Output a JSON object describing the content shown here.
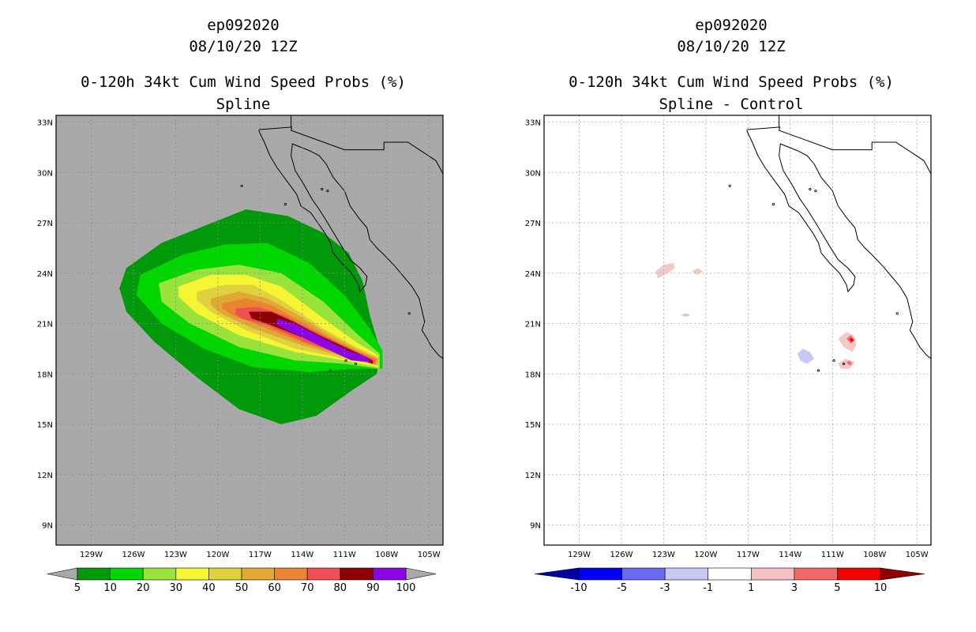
{
  "chart_data": [
    {
      "type": "filled-contour-map",
      "title_lines": [
        "ep092020",
        "08/10/20 12Z",
        "0-120h 34kt Cum Wind Speed Probs (%)",
        "Spline"
      ],
      "x_ticks": [
        "129W",
        "126W",
        "123W",
        "120W",
        "117W",
        "114W",
        "111W",
        "108W",
        "105W"
      ],
      "y_ticks": [
        "9N",
        "12N",
        "15N",
        "18N",
        "21N",
        "24N",
        "27N",
        "30N",
        "33N"
      ],
      "xlim_deg_east": [
        -131.5,
        -104.0
      ],
      "ylim_deg_north": [
        7.8,
        33.4
      ],
      "background_color": "#a9a9a9",
      "colorbar_labels": [
        "5",
        "10",
        "20",
        "30",
        "40",
        "50",
        "60",
        "70",
        "80",
        "90",
        "100"
      ],
      "colorbar_colors": [
        "#00990a",
        "#00d700",
        "#9ae33c",
        "#f5f533",
        "#dfd13f",
        "#e2a834",
        "#ea8430",
        "#f04f55",
        "#8c0000",
        "#8c05e6"
      ],
      "contour_levels": [
        {
          "threshold": 5,
          "color": "#00990a",
          "outline": [
            [
              -126.5,
              24.3
            ],
            [
              -124,
              25.8
            ],
            [
              -121,
              26.8
            ],
            [
              -118,
              27.8
            ],
            [
              -115,
              27.4
            ],
            [
              -112.5,
              26.4
            ],
            [
              -110.7,
              25.2
            ],
            [
              -109.7,
              23.5
            ],
            [
              -109.2,
              21.5
            ],
            [
              -108.5,
              19.5
            ],
            [
              -108.7,
              18.0
            ],
            [
              -110.5,
              17.0
            ],
            [
              -113,
              15.5
            ],
            [
              -115.5,
              15.0
            ],
            [
              -118.5,
              15.9
            ],
            [
              -121.5,
              17.8
            ],
            [
              -124.5,
              19.9
            ],
            [
              -126.5,
              21.7
            ],
            [
              -127,
              23.1
            ]
          ]
        },
        {
          "threshold": 10,
          "color": "#00d700",
          "outline": [
            [
              -125.5,
              23.9
            ],
            [
              -122.5,
              25.1
            ],
            [
              -119.5,
              25.7
            ],
            [
              -116.5,
              25.8
            ],
            [
              -113.5,
              24.6
            ],
            [
              -110.9,
              22.6
            ],
            [
              -109.3,
              20.8
            ],
            [
              -108.3,
              19.4
            ],
            [
              -108.3,
              18.3
            ],
            [
              -110.5,
              18.3
            ],
            [
              -113.5,
              18.1
            ],
            [
              -117.5,
              18.4
            ],
            [
              -121,
              19.5
            ],
            [
              -124,
              21.0
            ],
            [
              -125.8,
              22.7
            ]
          ]
        },
        {
          "threshold": 20,
          "color": "#9ae33c",
          "outline": [
            [
              -124.2,
              23.4
            ],
            [
              -121.5,
              24.2
            ],
            [
              -118.5,
              24.5
            ],
            [
              -115.5,
              24.0
            ],
            [
              -112.5,
              22.3
            ],
            [
              -110.0,
              20.3
            ],
            [
              -108.5,
              19.2
            ],
            [
              -108.5,
              18.3
            ],
            [
              -111,
              18.6
            ],
            [
              -114.5,
              18.8
            ],
            [
              -118.5,
              19.6
            ],
            [
              -122,
              21.0
            ],
            [
              -124,
              22.3
            ]
          ]
        },
        {
          "threshold": 30,
          "color": "#f5f533",
          "outline": [
            [
              -122.8,
              23.2
            ],
            [
              -120.5,
              23.9
            ],
            [
              -118,
              23.9
            ],
            [
              -115.5,
              23.2
            ],
            [
              -112.5,
              21.3
            ],
            [
              -110.0,
              19.8
            ],
            [
              -108.6,
              19.1
            ],
            [
              -108.6,
              18.4
            ],
            [
              -111,
              18.8
            ],
            [
              -114.5,
              19.3
            ],
            [
              -118.5,
              20.3
            ],
            [
              -121.5,
              21.6
            ],
            [
              -122.8,
              22.6
            ]
          ]
        },
        {
          "threshold": 40,
          "color": "#dfd13f",
          "outline": [
            [
              -121.5,
              22.9
            ],
            [
              -119.5,
              23.3
            ],
            [
              -117.5,
              23.3
            ],
            [
              -115.5,
              22.4
            ],
            [
              -112.5,
              20.7
            ],
            [
              -110.2,
              19.6
            ],
            [
              -108.6,
              19.0
            ],
            [
              -108.6,
              18.5
            ],
            [
              -111,
              18.9
            ],
            [
              -114.5,
              19.5
            ],
            [
              -118,
              20.6
            ],
            [
              -120.5,
              21.7
            ],
            [
              -121.5,
              22.4
            ]
          ]
        },
        {
          "threshold": 50,
          "color": "#e2a834",
          "outline": [
            [
              -120.5,
              22.5
            ],
            [
              -118.5,
              22.9
            ],
            [
              -116.5,
              22.5
            ],
            [
              -114.5,
              21.6
            ],
            [
              -112,
              20.3
            ],
            [
              -110.2,
              19.5
            ],
            [
              -108.6,
              18.9
            ],
            [
              -108.7,
              18.5
            ],
            [
              -111,
              19.0
            ],
            [
              -114,
              19.7
            ],
            [
              -117.5,
              20.7
            ],
            [
              -119.8,
              21.6
            ],
            [
              -120.5,
              22.1
            ]
          ]
        },
        {
          "threshold": 60,
          "color": "#ea8430",
          "outline": [
            [
              -119.7,
              22.2
            ],
            [
              -118,
              22.5
            ],
            [
              -116.2,
              22.1
            ],
            [
              -114,
              21.1
            ],
            [
              -111.7,
              20.0
            ],
            [
              -110.0,
              19.3
            ],
            [
              -108.7,
              18.9
            ],
            [
              -108.8,
              18.6
            ],
            [
              -111,
              19.1
            ],
            [
              -113.8,
              19.8
            ],
            [
              -116.8,
              20.8
            ],
            [
              -119,
              21.5
            ],
            [
              -119.7,
              21.9
            ]
          ]
        },
        {
          "threshold": 70,
          "color": "#f04f55",
          "outline": [
            [
              -118.7,
              21.9
            ],
            [
              -117.2,
              22.0
            ],
            [
              -115.3,
              21.5
            ],
            [
              -113.3,
              20.6
            ],
            [
              -111.3,
              19.8
            ],
            [
              -109.8,
              19.2
            ],
            [
              -108.8,
              18.8
            ],
            [
              -108.9,
              18.6
            ],
            [
              -111.3,
              19.2
            ],
            [
              -113.8,
              19.9
            ],
            [
              -116.5,
              20.9
            ],
            [
              -118.3,
              21.3
            ],
            [
              -118.8,
              21.6
            ]
          ]
        },
        {
          "threshold": 80,
          "color": "#8c0000",
          "outline": [
            [
              -117.8,
              21.7
            ],
            [
              -116.2,
              21.7
            ],
            [
              -114.6,
              21.1
            ],
            [
              -112.8,
              20.3
            ],
            [
              -111,
              19.6
            ],
            [
              -109.7,
              19.1
            ],
            [
              -109.0,
              18.8
            ],
            [
              -109.0,
              18.6
            ],
            [
              -111.5,
              19.3
            ],
            [
              -113.8,
              20.1
            ],
            [
              -116.2,
              20.9
            ],
            [
              -117.6,
              21.3
            ]
          ]
        },
        {
          "threshold": 90,
          "color": "#8c05e6",
          "outline": [
            [
              -115.8,
              21.3
            ],
            [
              -114.3,
              20.9
            ],
            [
              -112.5,
              20.1
            ],
            [
              -110.8,
              19.4
            ],
            [
              -109.4,
              19.0
            ],
            [
              -109.2,
              18.7
            ],
            [
              -110.5,
              18.8
            ],
            [
              -112.3,
              19.5
            ],
            [
              -114.3,
              20.3
            ],
            [
              -115.8,
              20.9
            ]
          ]
        }
      ]
    },
    {
      "type": "filled-contour-map",
      "title_lines": [
        "ep092020",
        "08/10/20 12Z",
        "0-120h 34kt Cum Wind Speed Probs (%)",
        "Spline - Control"
      ],
      "x_ticks": [
        "129W",
        "126W",
        "123W",
        "120W",
        "117W",
        "114W",
        "111W",
        "108W",
        "105W"
      ],
      "y_ticks": [
        "9N",
        "12N",
        "15N",
        "18N",
        "21N",
        "24N",
        "27N",
        "30N",
        "33N"
      ],
      "xlim_deg_east": [
        -131.5,
        -104.0
      ],
      "ylim_deg_north": [
        7.8,
        33.4
      ],
      "background_color": "#ffffff",
      "colorbar_labels": [
        "-10",
        "-5",
        "-3",
        "-1",
        "1",
        "3",
        "5",
        "10"
      ],
      "colorbar_colors": [
        "#0000a0",
        "#0000f5",
        "#6a6af0",
        "#c8c8f5",
        "#ffffff",
        "#f5c0c0",
        "#f06a6a",
        "#f50000",
        "#8c0000"
      ],
      "contour_levels": [
        {
          "threshold": 1,
          "color": "#f5c8c8",
          "outline": [
            [
              -123.6,
              24.1
            ],
            [
              -123,
              24.5
            ],
            [
              -122.3,
              24.6
            ],
            [
              -122.2,
              24.3
            ],
            [
              -122.7,
              24.0
            ],
            [
              -123.4,
              23.7
            ]
          ]
        },
        {
          "threshold": 1,
          "color": "#f5c8c8",
          "outline": [
            [
              -121.0,
              24.1
            ],
            [
              -120.6,
              24.3
            ],
            [
              -120.2,
              24.1
            ],
            [
              -120.6,
              23.9
            ]
          ]
        },
        {
          "threshold": -1,
          "color": "#c8c8f5",
          "outline": [
            [
              -121.8,
              21.5
            ],
            [
              -121.4,
              21.6
            ],
            [
              -121.1,
              21.5
            ],
            [
              -121.4,
              21.4
            ]
          ]
        },
        {
          "threshold": -1,
          "color": "#c8c8f5",
          "outline": [
            [
              -113.5,
              19.2
            ],
            [
              -113.1,
              19.5
            ],
            [
              -112.6,
              19.3
            ],
            [
              -112.3,
              18.9
            ],
            [
              -112.8,
              18.6
            ],
            [
              -113.3,
              18.8
            ]
          ]
        },
        {
          "threshold": 1,
          "color": "#f5c8c8",
          "outline": [
            [
              -110.6,
              20.1
            ],
            [
              -110.0,
              20.5
            ],
            [
              -109.5,
              20.3
            ],
            [
              -109.3,
              19.7
            ],
            [
              -109.6,
              19.3
            ],
            [
              -110.2,
              19.6
            ]
          ]
        },
        {
          "threshold": 1,
          "color": "#f5c8c8",
          "outline": [
            [
              -110.6,
              18.6
            ],
            [
              -110.1,
              18.9
            ],
            [
              -109.4,
              18.7
            ],
            [
              -109.8,
              18.3
            ],
            [
              -110.4,
              18.3
            ]
          ]
        },
        {
          "threshold": 3,
          "color": "#f06a6a",
          "outline": [
            [
              -110.0,
              20.1
            ],
            [
              -109.7,
              20.3
            ],
            [
              -109.4,
              20.0
            ],
            [
              -109.7,
              19.8
            ]
          ]
        },
        {
          "threshold": 3,
          "color": "#f06a6a",
          "outline": [
            [
              -110.0,
              18.7
            ],
            [
              -109.8,
              18.8
            ],
            [
              -109.6,
              18.6
            ],
            [
              -109.8,
              18.5
            ]
          ]
        },
        {
          "threshold": 5,
          "color": "#f50000",
          "outline": [
            [
              -109.8,
              20.05
            ],
            [
              -109.65,
              20.15
            ],
            [
              -109.5,
              20.0
            ],
            [
              -109.65,
              19.9
            ]
          ]
        }
      ]
    }
  ]
}
